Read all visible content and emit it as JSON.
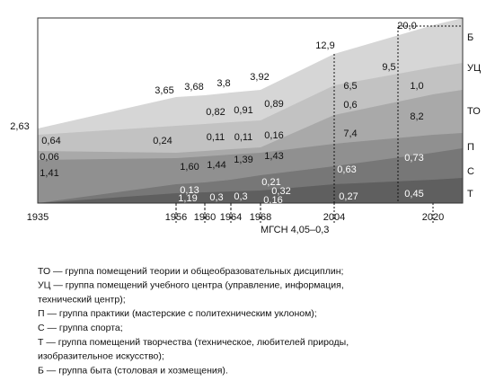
{
  "x_labels": [
    "1935",
    "1956",
    "1960",
    "1964",
    "1968",
    "2004",
    "2020"
  ],
  "axis_note": "МГСН 4,05–0,3",
  "group_letters": [
    "Б",
    "УЦ",
    "ТО",
    "П",
    "С",
    "Т"
  ],
  "value_labels": [
    "2,63",
    "0,64",
    "0,06",
    "1,41",
    "3,65",
    "0,24",
    "1,60",
    "0,13",
    "1,19",
    "3,68",
    "0,82",
    "0,11",
    "1,44",
    "0,3",
    "3,8",
    "0,91",
    "0,11",
    "1,39",
    "0,3",
    "3,92",
    "0,89",
    "0,16",
    "1,43",
    "0,21",
    "0,32",
    "0,16",
    "12,9",
    "6,5",
    "0,6",
    "7,4",
    "0,63",
    "0,27",
    "9,5",
    "20,0",
    "1,0",
    "8,2",
    "0,73",
    "0,45"
  ],
  "legend": [
    "ТО — группа помещений теории и общеобразовательных дисциплин;",
    "УЦ — группа помещений учебного центра (управление, информация,",
    "технический центр);",
    "П — группа практики (мастерские с политехническим уклоном);",
    "С — группа спорта;",
    "Т — группа помещений творчества (техническое, любителей природы,",
    "изобразительное искусство);",
    "Б — группа быта (столовая и хозмещения)."
  ]
}
